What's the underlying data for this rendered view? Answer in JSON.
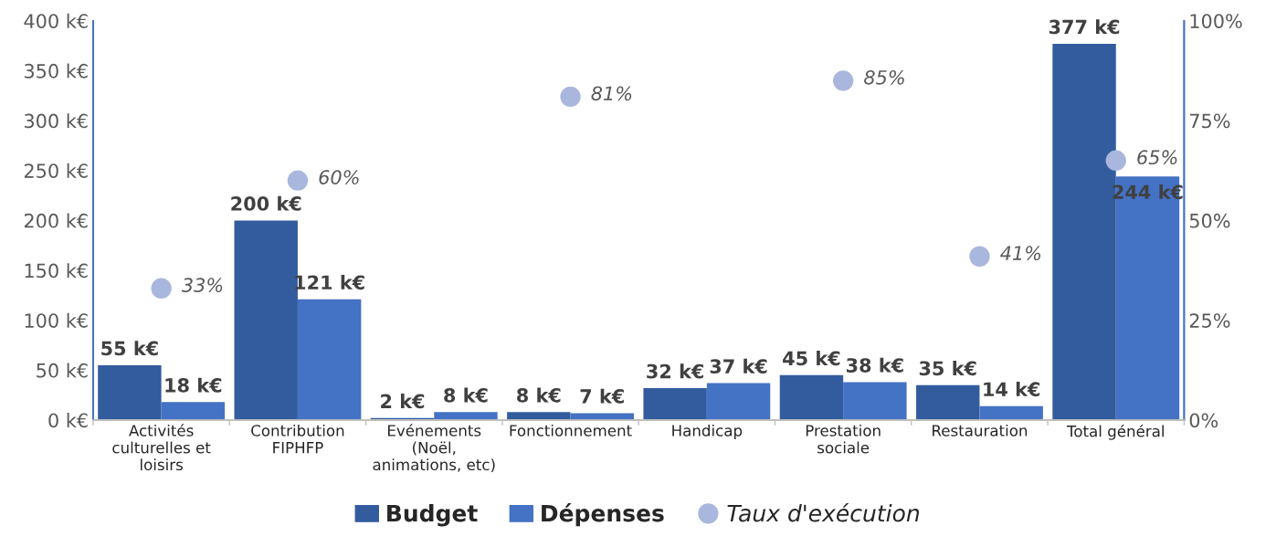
{
  "chart_data": {
    "type": "bar",
    "categories": [
      "Activités\nculturelles et\nloisirs",
      "Contribution\nFIPHFP",
      "Evénements\n(Noël,\nanimations, etc)",
      "Fonctionnement",
      "Handicap",
      "Prestation\nsociale",
      "Restauration",
      "Total général"
    ],
    "series": [
      {
        "name": "Budget",
        "color": "#335c9f",
        "values": [
          55,
          200,
          2,
          8,
          32,
          45,
          35,
          377
        ],
        "value_labels": [
          "55 k€",
          "200 k€",
          "2 k€",
          "8 k€",
          "32 k€",
          "45 k€",
          "35 k€",
          "377 k€"
        ]
      },
      {
        "name": "Dépenses",
        "color": "#4472c4",
        "values": [
          18,
          121,
          8,
          7,
          37,
          38,
          14,
          244
        ],
        "value_labels": [
          "18 k€",
          "121 k€",
          "8 k€",
          "7 k€",
          "37 k€",
          "38 k€",
          "14 k€",
          "244 k€"
        ]
      },
      {
        "name": "Taux d'exécution",
        "type": "scatter",
        "axis": "y2",
        "marker": "circle",
        "color": "#a9b7de",
        "values": [
          33,
          60,
          null,
          81,
          null,
          85,
          41,
          65
        ],
        "value_labels": [
          "33%",
          "60%",
          null,
          "81%",
          null,
          "85%",
          "41%",
          "65%"
        ]
      }
    ],
    "ylim": [
      0,
      400
    ],
    "yticks": [
      {
        "value": 0,
        "label": "0 k€"
      },
      {
        "value": 50,
        "label": "50 k€"
      },
      {
        "value": 100,
        "label": "100 k€"
      },
      {
        "value": 150,
        "label": "150 k€"
      },
      {
        "value": 200,
        "label": "200 k€"
      },
      {
        "value": 250,
        "label": "250 k€"
      },
      {
        "value": 300,
        "label": "300 k€"
      },
      {
        "value": 350,
        "label": "350 k€"
      },
      {
        "value": 400,
        "label": "400 k€"
      }
    ],
    "y2lim": [
      0,
      100
    ],
    "y2ticks": [
      {
        "value": 0,
        "label": "0%"
      },
      {
        "value": 25,
        "label": "25%"
      },
      {
        "value": 50,
        "label": "50%"
      },
      {
        "value": 75,
        "label": "75%"
      },
      {
        "value": 100,
        "label": "100%"
      }
    ],
    "grid": false,
    "legend": "bottom"
  }
}
